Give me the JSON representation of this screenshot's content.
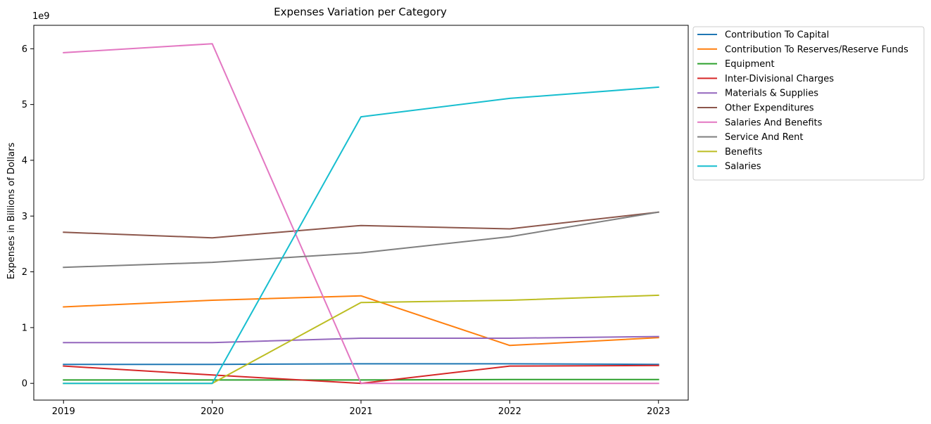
{
  "chart_data": {
    "type": "line",
    "title": "Expenses Variation per Category",
    "xlabel": "",
    "ylabel": "Expenses in Billions of Dollars",
    "scale_note": "1e9",
    "x": [
      2019,
      2020,
      2021,
      2022,
      2023
    ],
    "x_tick_labels": [
      "2019",
      "2020",
      "2021",
      "2022",
      "2023"
    ],
    "y_ticks": [
      0,
      1,
      2,
      3,
      4,
      5,
      6
    ],
    "y_tick_labels": [
      "0",
      "1",
      "2",
      "3",
      "4",
      "5",
      "6"
    ],
    "xlim": [
      2018.8,
      2023.2
    ],
    "ylim": [
      -0.3,
      6.42
    ],
    "grid": false,
    "legend_position": "outside-upper-right",
    "series": [
      {
        "name": "Contribution To Capital",
        "color": "#1f77b4",
        "values": [
          0.34,
          0.34,
          0.35,
          0.35,
          0.34
        ]
      },
      {
        "name": "Contribution To Reserves/Reserve Funds",
        "color": "#ff7f0e",
        "values": [
          1.37,
          1.49,
          1.57,
          0.68,
          0.82
        ]
      },
      {
        "name": "Equipment",
        "color": "#2ca02c",
        "values": [
          0.06,
          0.06,
          0.06,
          0.07,
          0.07
        ]
      },
      {
        "name": "Inter-Divisional Charges",
        "color": "#d62728",
        "values": [
          0.31,
          0.15,
          0.0,
          0.31,
          0.32
        ]
      },
      {
        "name": "Materials & Supplies",
        "color": "#9467bd",
        "values": [
          0.73,
          0.73,
          0.81,
          0.81,
          0.84
        ]
      },
      {
        "name": "Other Expenditures",
        "color": "#8c564b",
        "values": [
          2.71,
          2.61,
          2.83,
          2.77,
          3.07
        ]
      },
      {
        "name": "Salaries And Benefits",
        "color": "#e377c2",
        "values": [
          5.93,
          6.09,
          0.0,
          0.0,
          0.0
        ]
      },
      {
        "name": "Service And Rent",
        "color": "#7f7f7f",
        "values": [
          2.08,
          2.17,
          2.34,
          2.63,
          3.07
        ]
      },
      {
        "name": "Benefits",
        "color": "#bcbd22",
        "values": [
          0.0,
          0.0,
          1.45,
          1.49,
          1.58
        ]
      },
      {
        "name": "Salaries",
        "color": "#17becf",
        "values": [
          0.0,
          0.0,
          4.78,
          5.11,
          5.31
        ]
      }
    ]
  }
}
